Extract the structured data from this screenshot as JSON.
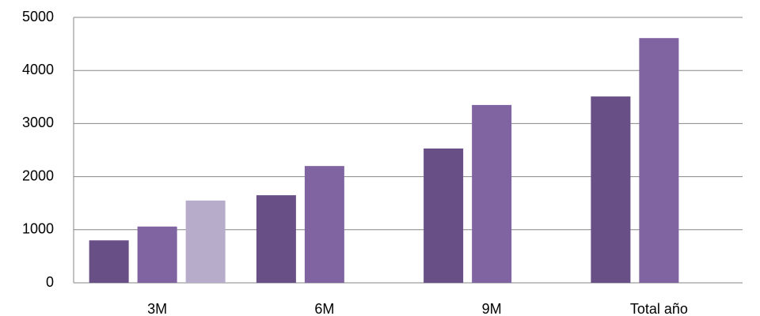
{
  "chart_data": {
    "type": "bar",
    "categories": [
      "3M",
      "6M",
      "9M",
      "Total año"
    ],
    "series": [
      {
        "color": "#684f86",
        "values": [
          800,
          1650,
          2530,
          3510
        ]
      },
      {
        "color": "#8064a2",
        "values": [
          1060,
          2200,
          3350,
          4610
        ]
      },
      {
        "color": "#b7acc9",
        "values": [
          1550,
          null,
          null,
          null
        ]
      }
    ],
    "ylim": [
      0,
      5000
    ],
    "yticks": [
      0,
      1000,
      2000,
      3000,
      4000,
      5000
    ],
    "grid": true
  }
}
